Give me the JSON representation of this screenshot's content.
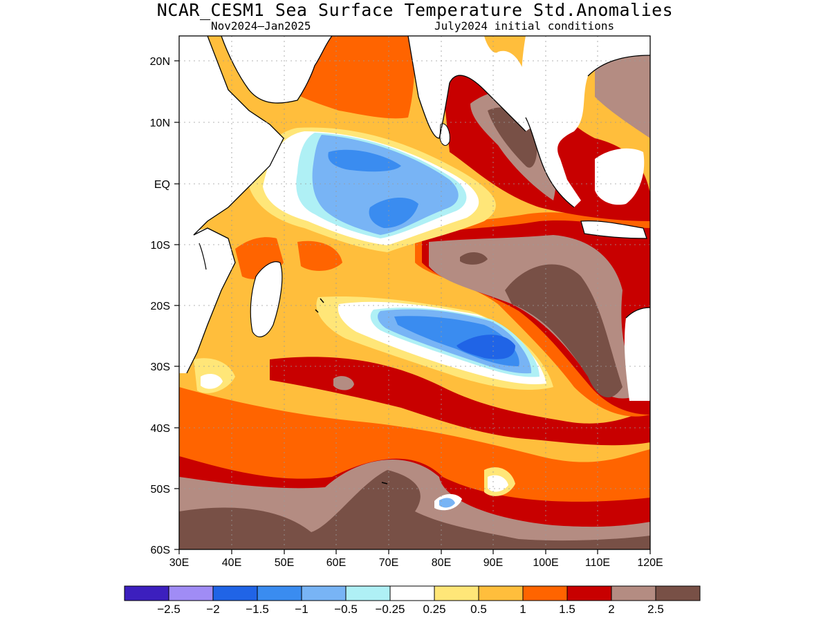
{
  "title": "NCAR_CESM1 Sea Surface Temperature Std.Anomalies",
  "subtitle_left": "Nov2024—Jan2025",
  "subtitle_right": "July2024 initial conditions",
  "map": {
    "lon_range": [
      30,
      120
    ],
    "lat_range": [
      -60,
      24
    ],
    "y_ticks": [
      "20N",
      "10N",
      "EQ",
      "10S",
      "20S",
      "30S",
      "40S",
      "50S",
      "60S"
    ],
    "x_ticks": [
      "30E",
      "40E",
      "50E",
      "60E",
      "70E",
      "80E",
      "90E",
      "100E",
      "110E",
      "120E"
    ]
  },
  "colorbar": {
    "colors": [
      "#3c1fbe",
      "#a08cf5",
      "#2064e6",
      "#3a8cf0",
      "#78b4f5",
      "#aff0f5",
      "#ffffff",
      "#ffe678",
      "#ffbe3c",
      "#ff6400",
      "#c80000",
      "#b48c82",
      "#785046"
    ],
    "labels": [
      "−2.5",
      "−2",
      "−1.5",
      "−1",
      "−0.5",
      "−0.25",
      "0.25",
      "0.5",
      "1",
      "1.5",
      "2",
      "2.5"
    ]
  }
}
